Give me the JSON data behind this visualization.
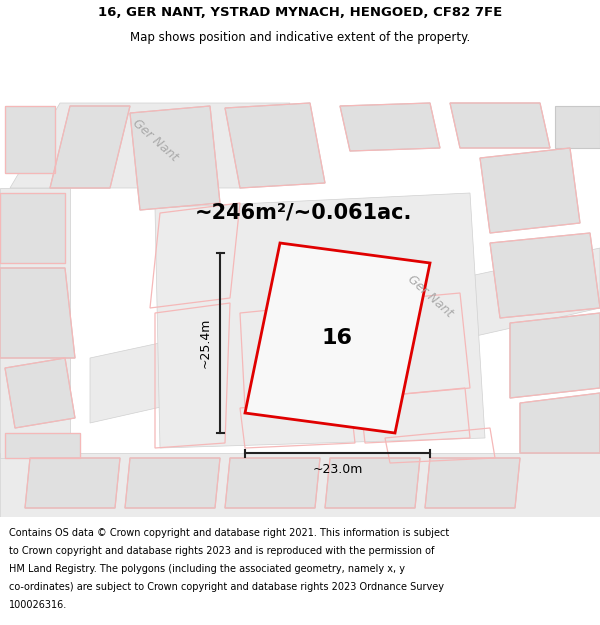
{
  "title_line1": "16, GER NANT, YSTRAD MYNACH, HENGOED, CF82 7FE",
  "title_line2": "Map shows position and indicative extent of the property.",
  "area_text": "~246m²/~0.061ac.",
  "number_label": "16",
  "width_label": "~23.0m",
  "height_label": "~25.4m",
  "street_name_top": "Ger Nant",
  "street_name_right": "Ger Nant",
  "footer_lines": [
    "Contains OS data © Crown copyright and database right 2021. This information is subject",
    "to Crown copyright and database rights 2023 and is reproduced with the permission of",
    "HM Land Registry. The polygons (including the associated geometry, namely x, y",
    "co-ordinates) are subject to Crown copyright and database rights 2023 Ordnance Survey",
    "100026316."
  ],
  "map_bg": "#f8f8f8",
  "road_fill": "#ebebeb",
  "bldg_fill": "#e0e0e0",
  "bldg_edge": "#c8c8c8",
  "pink": "#f5b8b8",
  "plot_fill": "#e8e8e8",
  "plot_edge": "#cccccc",
  "prop_edge": "#e00000",
  "title_fontsize": 9.5,
  "subtitle_fontsize": 8.5,
  "area_fontsize": 15,
  "number_fontsize": 16,
  "dim_fontsize": 9,
  "footer_fontsize": 7.0,
  "street_fontsize": 9
}
